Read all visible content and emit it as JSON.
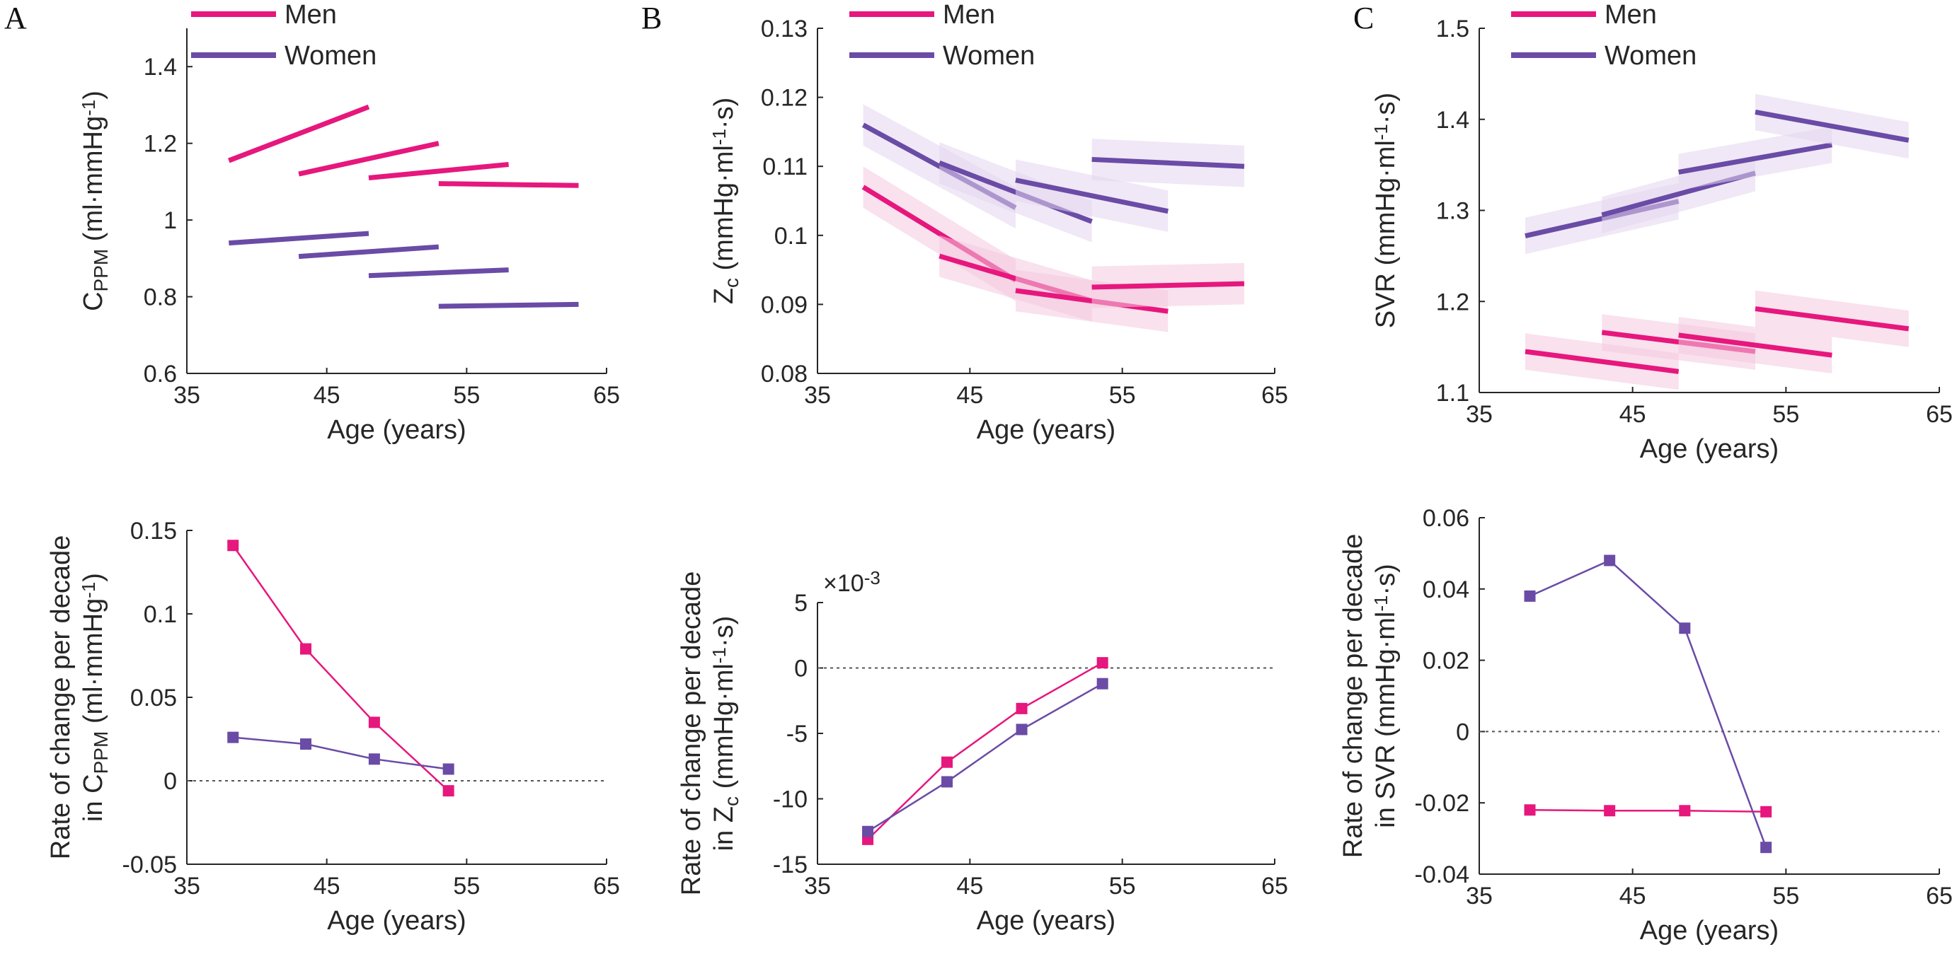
{
  "colors": {
    "men": "#e6177d",
    "women": "#6a4ba6",
    "men_band": "#f4c9de",
    "women_band": "#e3d6ee"
  },
  "chart_data": [
    {
      "panel": "A",
      "type": "line",
      "xlabel": "Age (years)",
      "ylabel_parts": [
        "C",
        "PPM",
        " (ml·mmHg",
        "-1",
        ")"
      ],
      "xlim": [
        35,
        65
      ],
      "ylim": [
        0.6,
        1.5
      ],
      "xticks": [
        35,
        45,
        55,
        65
      ],
      "xtick_labels": [
        "35",
        "45",
        "55",
        "65"
      ],
      "yticks": [
        0.6,
        0.8,
        1.0,
        1.2,
        1.4
      ],
      "ytick_labels": [
        "0.6",
        "0.8",
        "1",
        "1.2",
        "1.4"
      ],
      "legend": [
        "Men",
        "Women"
      ],
      "series": [
        {
          "name": "Men",
          "segments": [
            {
              "x": [
                38,
                48
              ],
              "y": [
                1.155,
                1.295
              ]
            },
            {
              "x": [
                43,
                53
              ],
              "y": [
                1.12,
                1.2
              ]
            },
            {
              "x": [
                48,
                58
              ],
              "y": [
                1.11,
                1.145
              ]
            },
            {
              "x": [
                53,
                63
              ],
              "y": [
                1.095,
                1.09
              ]
            }
          ]
        },
        {
          "name": "Women",
          "segments": [
            {
              "x": [
                38,
                48
              ],
              "y": [
                0.94,
                0.965
              ]
            },
            {
              "x": [
                43,
                53
              ],
              "y": [
                0.905,
                0.93
              ]
            },
            {
              "x": [
                48,
                58
              ],
              "y": [
                0.855,
                0.87
              ]
            },
            {
              "x": [
                53,
                63
              ],
              "y": [
                0.775,
                0.78
              ]
            }
          ]
        }
      ]
    },
    {
      "panel": "B",
      "type": "line",
      "xlabel": "Age (years)",
      "ylabel_parts": [
        "Z",
        "c",
        " (mmHg·ml",
        "-1",
        "·s)"
      ],
      "xlim": [
        35,
        65
      ],
      "ylim": [
        0.08,
        0.13
      ],
      "xticks": [
        35,
        45,
        55,
        65
      ],
      "xtick_labels": [
        "35",
        "45",
        "55",
        "65"
      ],
      "yticks": [
        0.08,
        0.09,
        0.1,
        0.11,
        0.12,
        0.13
      ],
      "ytick_labels": [
        "0.08",
        "0.09",
        "0.1",
        "0.11",
        "0.12",
        "0.13"
      ],
      "legend": [
        "Men",
        "Women"
      ],
      "band_halfwidth": 0.003,
      "series": [
        {
          "name": "Men",
          "segments": [
            {
              "x": [
                38,
                48
              ],
              "y": [
                0.107,
                0.0935
              ]
            },
            {
              "x": [
                43,
                53
              ],
              "y": [
                0.097,
                0.0905
              ]
            },
            {
              "x": [
                48,
                58
              ],
              "y": [
                0.092,
                0.089
              ]
            },
            {
              "x": [
                53,
                63
              ],
              "y": [
                0.0925,
                0.093
              ]
            }
          ]
        },
        {
          "name": "Women",
          "segments": [
            {
              "x": [
                38,
                48
              ],
              "y": [
                0.116,
                0.104
              ]
            },
            {
              "x": [
                43,
                53
              ],
              "y": [
                0.1105,
                0.102
              ]
            },
            {
              "x": [
                48,
                58
              ],
              "y": [
                0.108,
                0.1035
              ]
            },
            {
              "x": [
                53,
                63
              ],
              "y": [
                0.111,
                0.11
              ]
            }
          ]
        }
      ]
    },
    {
      "panel": "C",
      "type": "line",
      "xlabel": "Age (years)",
      "ylabel_parts": [
        "SVR (mmHg·ml",
        "-1",
        "·s)"
      ],
      "xlim": [
        35,
        65
      ],
      "ylim": [
        1.1,
        1.5
      ],
      "xticks": [
        35,
        45,
        55,
        65
      ],
      "xtick_labels": [
        "35",
        "45",
        "55",
        "65"
      ],
      "yticks": [
        1.1,
        1.2,
        1.3,
        1.4,
        1.5
      ],
      "ytick_labels": [
        "1.1",
        "1.2",
        "1.3",
        "1.4",
        "1.5"
      ],
      "legend": [
        "Men",
        "Women"
      ],
      "band_halfwidth": 0.02,
      "series": [
        {
          "name": "Men",
          "segments": [
            {
              "x": [
                38,
                48
              ],
              "y": [
                1.145,
                1.123
              ]
            },
            {
              "x": [
                43,
                53
              ],
              "y": [
                1.166,
                1.145
              ]
            },
            {
              "x": [
                48,
                58
              ],
              "y": [
                1.163,
                1.141
              ]
            },
            {
              "x": [
                53,
                63
              ],
              "y": [
                1.192,
                1.17
              ]
            }
          ]
        },
        {
          "name": "Women",
          "segments": [
            {
              "x": [
                38,
                48
              ],
              "y": [
                1.272,
                1.31
              ]
            },
            {
              "x": [
                43,
                53
              ],
              "y": [
                1.295,
                1.341
              ]
            },
            {
              "x": [
                48,
                58
              ],
              "y": [
                1.342,
                1.372
              ]
            },
            {
              "x": [
                53,
                63
              ],
              "y": [
                1.408,
                1.377
              ]
            }
          ]
        }
      ]
    },
    {
      "panel": "A-rate",
      "type": "line",
      "xlabel": "Age (years)",
      "ylabel_line1": "Rate of change per decade",
      "ylabel_parts": [
        "in C",
        "PPM",
        " (ml·mmHg",
        "-1",
        ")"
      ],
      "xlim": [
        35,
        65
      ],
      "ylim": [
        -0.05,
        0.15
      ],
      "xticks": [
        35,
        45,
        55,
        65
      ],
      "xtick_labels": [
        "35",
        "45",
        "55",
        "65"
      ],
      "yticks": [
        -0.05,
        0,
        0.05,
        0.1,
        0.15
      ],
      "ytick_labels": [
        "-0.05",
        "0",
        "0.05",
        "0.1",
        "0.15"
      ],
      "series": [
        {
          "name": "Men",
          "x": [
            38.3,
            43.5,
            48.4,
            53.7
          ],
          "y": [
            0.141,
            0.079,
            0.035,
            -0.006
          ]
        },
        {
          "name": "Women",
          "x": [
            38.3,
            43.5,
            48.4,
            53.7
          ],
          "y": [
            0.026,
            0.022,
            0.013,
            0.007
          ]
        }
      ]
    },
    {
      "panel": "B-rate",
      "type": "line",
      "xlabel": "Age (years)",
      "ylabel_line1": "Rate of change per decade",
      "ylabel_parts": [
        "in Z",
        "c",
        " (mmHg·ml",
        "-1",
        "·s)"
      ],
      "exponent_label": [
        "×10",
        "-3"
      ],
      "xlim": [
        35,
        65
      ],
      "ylim": [
        -15,
        5
      ],
      "xticks": [
        35,
        45,
        55,
        65
      ],
      "xtick_labels": [
        "35",
        "45",
        "55",
        "65"
      ],
      "yticks": [
        -15,
        -10,
        -5,
        0,
        5
      ],
      "ytick_labels": [
        "-15",
        "-10",
        "-5",
        "0",
        "5"
      ],
      "series": [
        {
          "name": "Men",
          "x": [
            38.3,
            43.5,
            48.4,
            53.7
          ],
          "y": [
            -13.1,
            -7.2,
            -3.1,
            0.4
          ]
        },
        {
          "name": "Women",
          "x": [
            38.3,
            43.5,
            48.4,
            53.7
          ],
          "y": [
            -12.5,
            -8.7,
            -4.7,
            -1.2
          ]
        }
      ]
    },
    {
      "panel": "C-rate",
      "type": "line",
      "xlabel": "Age (years)",
      "ylabel_line1": "Rate of change per decade",
      "ylabel_parts": [
        "in SVR (mmHg·ml",
        "-1",
        "·s)"
      ],
      "xlim": [
        35,
        65
      ],
      "ylim": [
        -0.04,
        0.06
      ],
      "xticks": [
        35,
        45,
        55,
        65
      ],
      "xtick_labels": [
        "35",
        "45",
        "55",
        "65"
      ],
      "yticks": [
        -0.04,
        -0.02,
        0,
        0.02,
        0.04,
        0.06
      ],
      "ytick_labels": [
        "-0.04",
        "-0.02",
        "0",
        "0.02",
        "0.04",
        "0.06"
      ],
      "series": [
        {
          "name": "Men",
          "x": [
            38.3,
            43.5,
            48.4,
            53.7
          ],
          "y": [
            -0.022,
            -0.0222,
            -0.0222,
            -0.0225
          ]
        },
        {
          "name": "Women",
          "x": [
            38.3,
            43.5,
            48.4,
            53.7
          ],
          "y": [
            0.038,
            0.048,
            0.029,
            -0.0325
          ]
        }
      ]
    }
  ],
  "panel_letters": [
    "A",
    "B",
    "C"
  ]
}
